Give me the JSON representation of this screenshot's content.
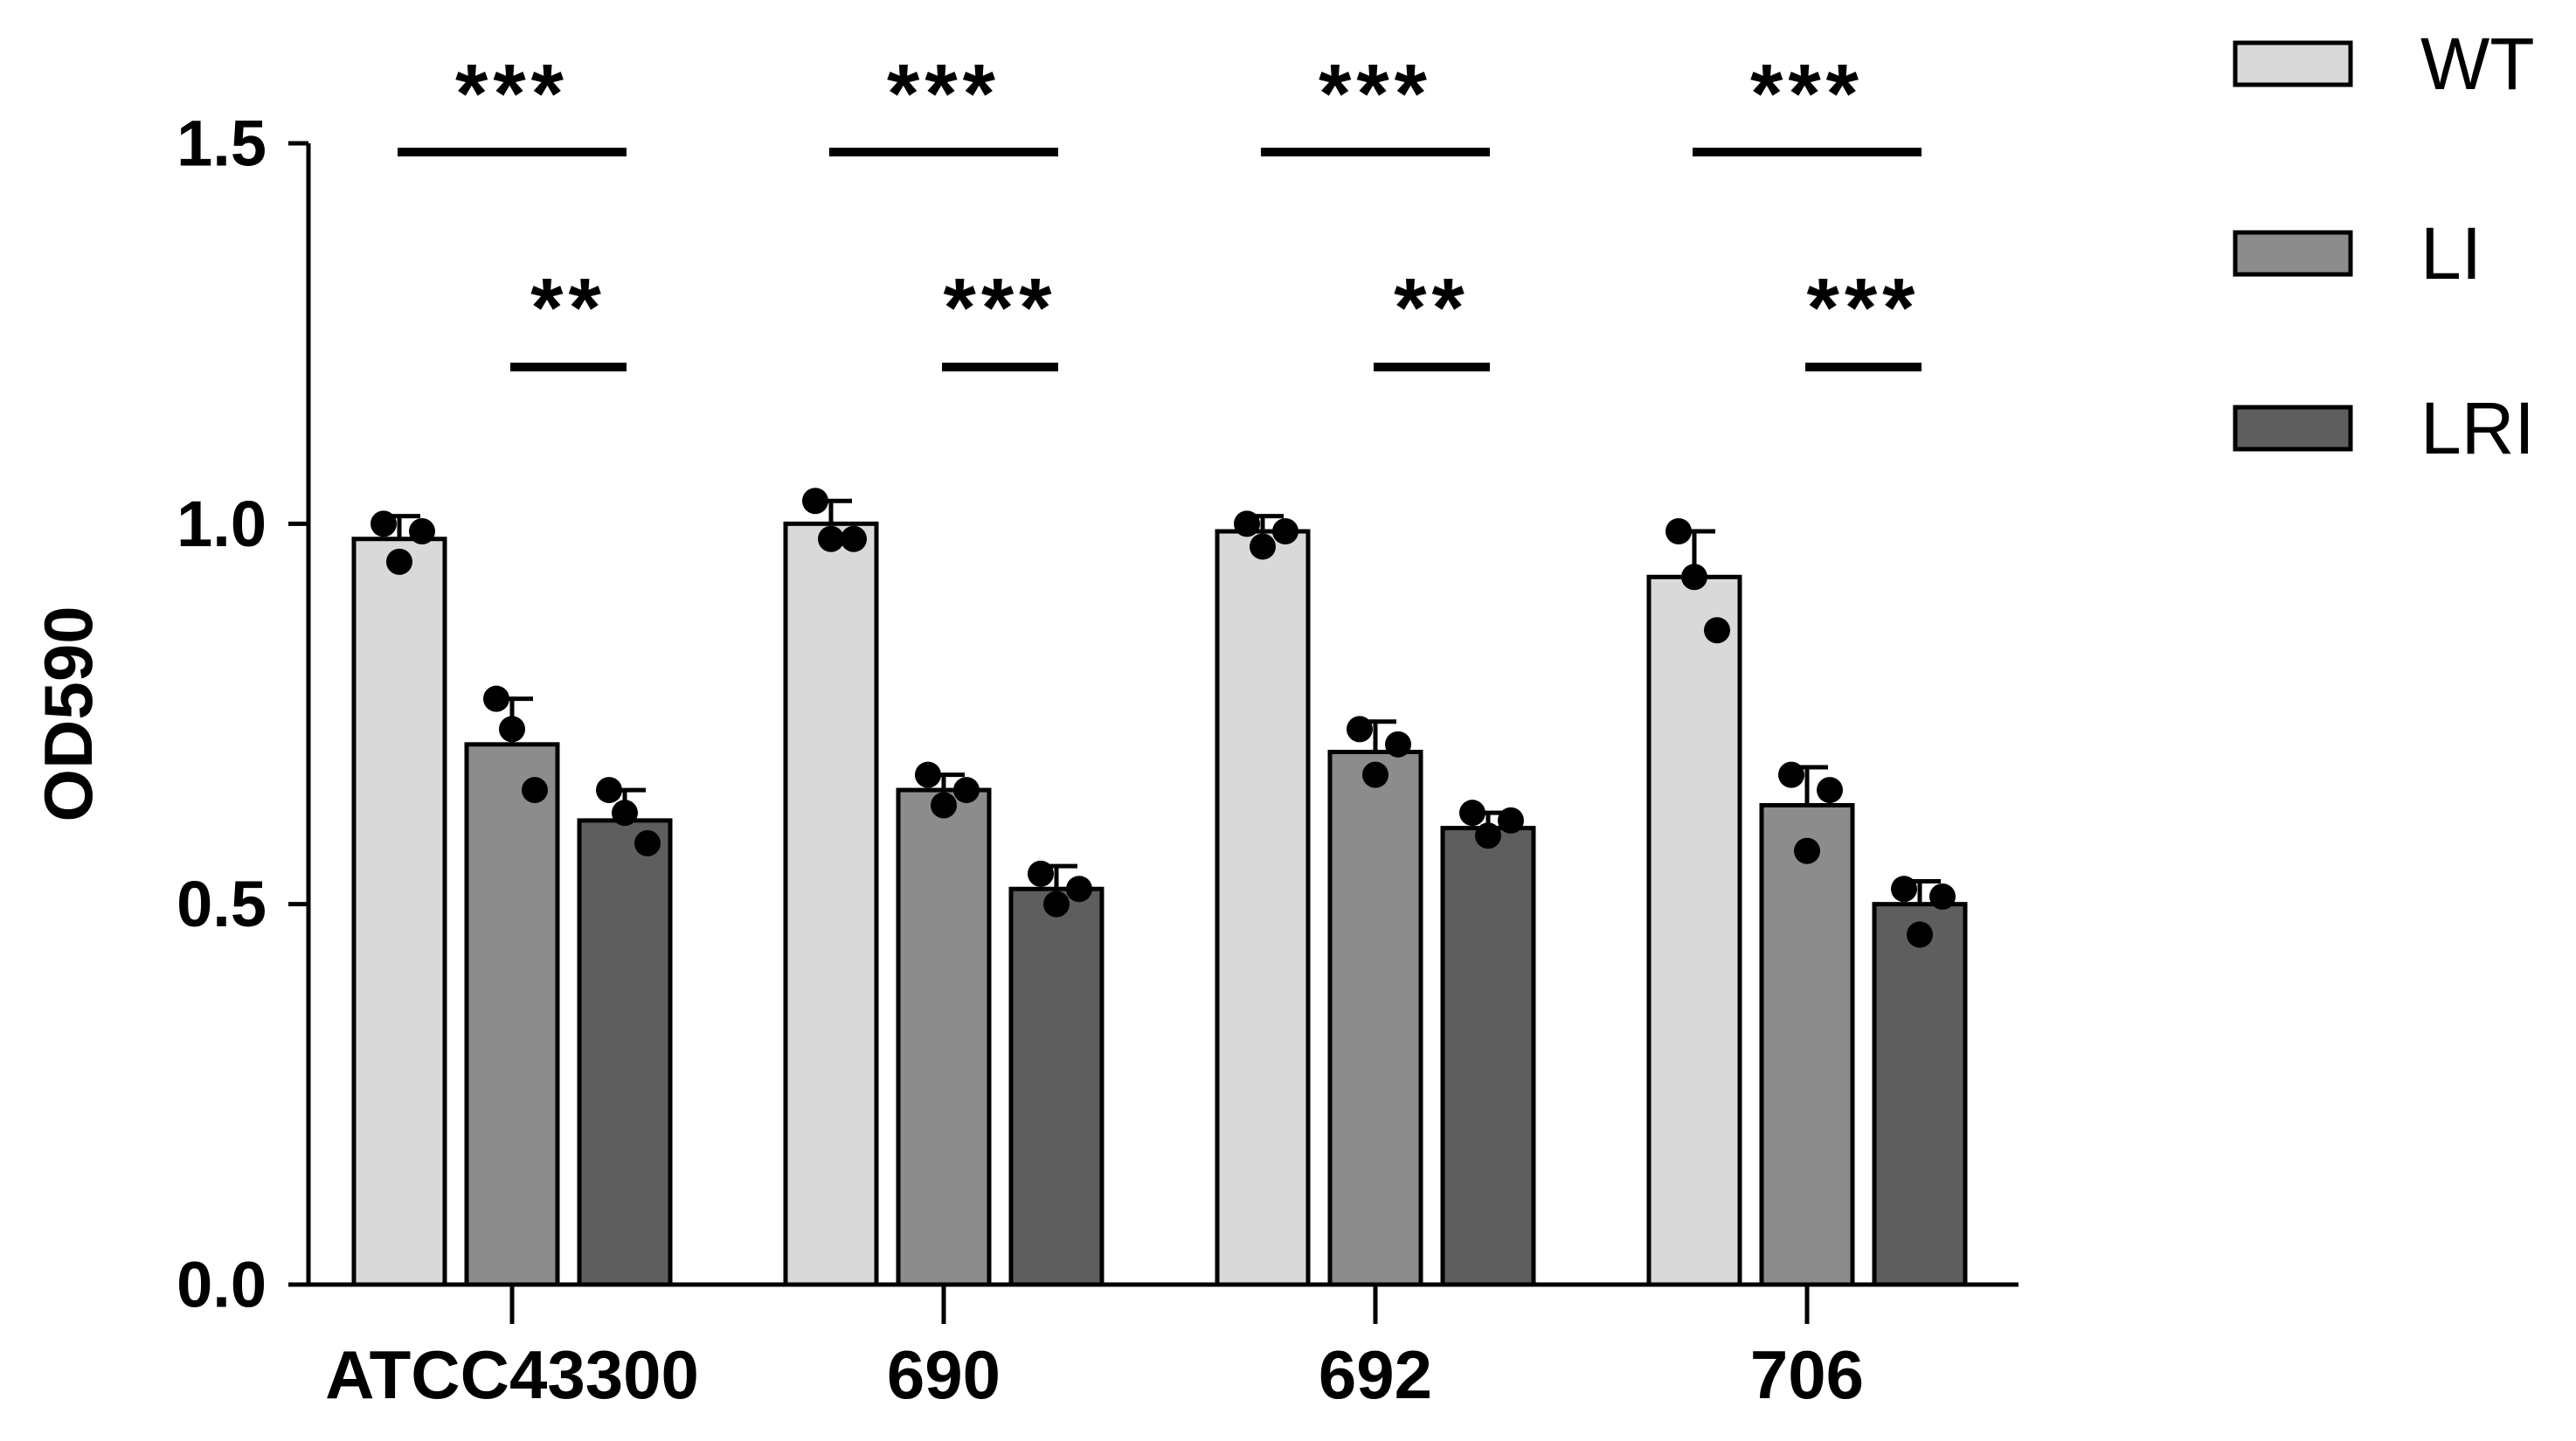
{
  "chart_data": {
    "type": "bar",
    "title": "",
    "xlabel": "",
    "ylabel": "OD590",
    "ylim": [
      0,
      1.5
    ],
    "yticks": [
      "0.0",
      "0.5",
      "1.0",
      "1.5"
    ],
    "grid": false,
    "legend_position": "top-right",
    "categories": [
      "ATCC43300",
      "690",
      "692",
      "706"
    ],
    "series": [
      {
        "name": "WT",
        "color": "#d9d9d9",
        "values": [
          0.98,
          1.0,
          0.99,
          0.93
        ],
        "errors": [
          0.03,
          0.03,
          0.02,
          0.06
        ],
        "points": [
          [
            1.0,
            0.95,
            0.99
          ],
          [
            1.03,
            0.98,
            0.98
          ],
          [
            1.0,
            0.97,
            0.99
          ],
          [
            0.99,
            0.93,
            0.86
          ]
        ]
      },
      {
        "name": "LI",
        "color": "#8c8c8c",
        "values": [
          0.71,
          0.65,
          0.7,
          0.63
        ],
        "errors": [
          0.06,
          0.02,
          0.04,
          0.05
        ],
        "points": [
          [
            0.77,
            0.73,
            0.65
          ],
          [
            0.67,
            0.63,
            0.65
          ],
          [
            0.73,
            0.67,
            0.71
          ],
          [
            0.67,
            0.57,
            0.65
          ]
        ]
      },
      {
        "name": "LRI",
        "color": "#5e5e5e",
        "values": [
          0.61,
          0.52,
          0.6,
          0.5
        ],
        "errors": [
          0.04,
          0.03,
          0.02,
          0.03
        ],
        "points": [
          [
            0.65,
            0.62,
            0.58
          ],
          [
            0.54,
            0.5,
            0.52
          ],
          [
            0.62,
            0.59,
            0.61
          ],
          [
            0.52,
            0.46,
            0.51
          ]
        ]
      }
    ],
    "annotations": [
      {
        "category": "ATCC43300",
        "from": "WT",
        "to": "LRI",
        "text": "***",
        "level": 2
      },
      {
        "category": "ATCC43300",
        "from": "LI",
        "to": "LRI",
        "text": "**",
        "level": 1
      },
      {
        "category": "690",
        "from": "WT",
        "to": "LRI",
        "text": "***",
        "level": 2
      },
      {
        "category": "690",
        "from": "LI",
        "to": "LRI",
        "text": "***",
        "level": 1
      },
      {
        "category": "692",
        "from": "WT",
        "to": "LRI",
        "text": "***",
        "level": 2
      },
      {
        "category": "692",
        "from": "LI",
        "to": "LRI",
        "text": "**",
        "level": 1
      },
      {
        "category": "706",
        "from": "WT",
        "to": "LRI",
        "text": "***",
        "level": 2
      },
      {
        "category": "706",
        "from": "LI",
        "to": "LRI",
        "text": "***",
        "level": 1
      }
    ]
  }
}
